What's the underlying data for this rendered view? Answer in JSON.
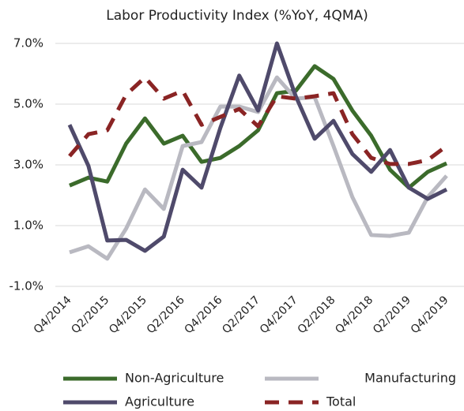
{
  "chart_data": {
    "type": "line",
    "title": "Labor Productivity Index (%YoY, 4QMA)",
    "categories": [
      "Q4/2014",
      null,
      "Q2/2015",
      null,
      "Q4/2015",
      null,
      "Q2/2016",
      null,
      "Q4/2016",
      null,
      "Q2/2017",
      null,
      "Q4/2017",
      null,
      "Q2/2018",
      null,
      "Q4/2018",
      null,
      "Q2/2019",
      null,
      "Q4/2019"
    ],
    "series": [
      {
        "name": "Non-Agriculture",
        "color": "#3b6b2b",
        "dash": false,
        "values": [
          2.32,
          2.58,
          2.45,
          3.7,
          4.53,
          3.7,
          3.96,
          3.1,
          3.23,
          3.62,
          4.14,
          5.36,
          5.44,
          6.25,
          5.83,
          4.79,
          3.96,
          2.84,
          2.25,
          2.77,
          3.05
        ]
      },
      {
        "name": "Manufacturing",
        "color": "#b9b9c1",
        "dash": false,
        "values": [
          0.12,
          0.32,
          -0.09,
          0.9,
          2.19,
          1.55,
          3.62,
          3.75,
          4.92,
          4.92,
          4.74,
          5.88,
          5.18,
          5.23,
          3.62,
          1.94,
          0.69,
          0.66,
          0.77,
          1.94,
          2.64
        ]
      },
      {
        "name": "Agriculture",
        "color": "#4f4a6b",
        "dash": false,
        "values": [
          4.32,
          2.97,
          0.51,
          0.53,
          0.17,
          0.64,
          2.84,
          2.25,
          4.22,
          5.94,
          4.79,
          7.0,
          5.26,
          3.86,
          4.45,
          3.36,
          2.77,
          3.49,
          2.25,
          1.88,
          2.19
        ]
      },
      {
        "name": "Total",
        "color": "#8a2424",
        "dash": true,
        "values": [
          3.29,
          4.01,
          4.14,
          5.31,
          5.88,
          5.18,
          5.44,
          4.32,
          4.58,
          4.84,
          4.27,
          5.26,
          5.18,
          5.26,
          5.36,
          4.01,
          3.23,
          3.03,
          3.03,
          3.16,
          3.62
        ]
      }
    ],
    "ylim": [
      -1,
      7
    ],
    "yticks": [
      {
        "value": -1,
        "label": "-1.0%"
      },
      {
        "value": 1,
        "label": "1.0%"
      },
      {
        "value": 3,
        "label": "3.0%"
      },
      {
        "value": 5,
        "label": "5.0%"
      },
      {
        "value": 7,
        "label": "7.0%"
      }
    ],
    "grid": true
  }
}
